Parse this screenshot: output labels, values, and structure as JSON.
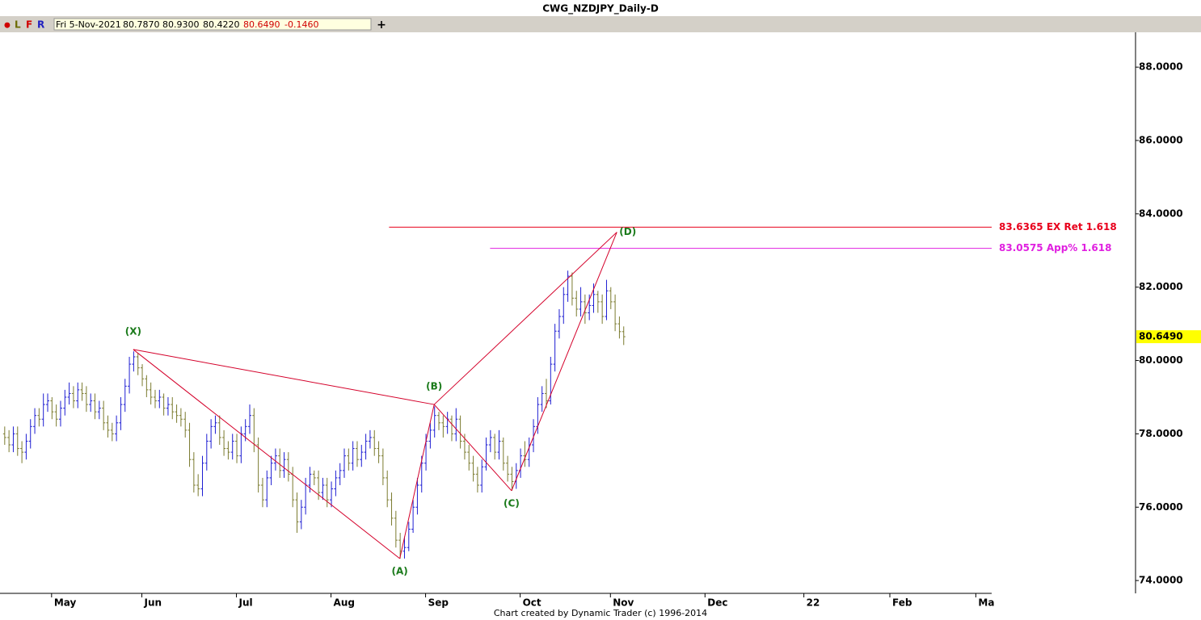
{
  "header": {
    "title": "CWG_NZDJPY_Daily-D",
    "toolbar": [
      "●",
      "L",
      "F",
      "R"
    ],
    "quote": [
      "Fri 5-Nov-2021",
      "80.7870",
      "80.9300",
      "80.4220",
      "80.6490",
      "-0.1460"
    ],
    "add_button": "+"
  },
  "chart_data": {
    "type": "ohlc",
    "up_color": "#1e1ed2",
    "down_color": "#7b7b2f",
    "xlim": [
      -1,
      229.5
    ],
    "ylim": [
      73.65,
      88.95
    ],
    "xticks": [
      {
        "value": 11,
        "label": "May"
      },
      {
        "value": 32,
        "label": "Jun"
      },
      {
        "value": 54,
        "label": "Jul"
      },
      {
        "value": 76,
        "label": "Aug"
      },
      {
        "value": 98,
        "label": "Sep"
      },
      {
        "value": 120,
        "label": "Oct"
      },
      {
        "value": 141,
        "label": "Nov"
      },
      {
        "value": 163,
        "label": "Dec"
      },
      {
        "value": 186,
        "label": "22"
      },
      {
        "value": 206,
        "label": "Feb"
      },
      {
        "value": 226,
        "label": "Ma"
      }
    ],
    "yticks": [
      {
        "value": 74,
        "label": "74.0000"
      },
      {
        "value": 76,
        "label": "76.0000"
      },
      {
        "value": 78,
        "label": "78.0000"
      },
      {
        "value": 80,
        "label": "80.0000"
      },
      {
        "value": 82,
        "label": "82.0000"
      },
      {
        "value": 84,
        "label": "84.0000"
      },
      {
        "value": 86,
        "label": "86.0000"
      },
      {
        "value": 88,
        "label": "88.0000"
      }
    ],
    "last_price": {
      "value": 80.649,
      "label": "80.6490"
    },
    "bars": [
      [
        78.0,
        78.2,
        77.7,
        77.9
      ],
      [
        77.9,
        78.1,
        77.5,
        77.7
      ],
      [
        77.7,
        78.2,
        77.5,
        78.0
      ],
      [
        78.0,
        78.2,
        77.4,
        77.6
      ],
      [
        77.6,
        77.8,
        77.2,
        77.5
      ],
      [
        77.5,
        78.0,
        77.3,
        77.8
      ],
      [
        77.8,
        78.4,
        77.6,
        78.2
      ],
      [
        78.2,
        78.7,
        78.0,
        78.5
      ],
      [
        78.5,
        78.7,
        78.2,
        78.4
      ],
      [
        78.4,
        79.1,
        78.2,
        78.8
      ],
      [
        78.8,
        79.1,
        78.6,
        78.9
      ],
      [
        78.9,
        79.0,
        78.4,
        78.6
      ],
      [
        78.6,
        78.8,
        78.2,
        78.4
      ],
      [
        78.4,
        78.9,
        78.2,
        78.7
      ],
      [
        78.7,
        79.2,
        78.5,
        79.0
      ],
      [
        79.0,
        79.4,
        78.8,
        79.1
      ],
      [
        79.1,
        79.3,
        78.7,
        78.9
      ],
      [
        78.9,
        79.4,
        78.7,
        79.2
      ],
      [
        79.2,
        79.4,
        78.9,
        79.1
      ],
      [
        79.1,
        79.3,
        78.6,
        78.8
      ],
      [
        78.8,
        79.1,
        78.6,
        78.9
      ],
      [
        78.9,
        79.1,
        78.4,
        78.6
      ],
      [
        78.6,
        78.9,
        78.4,
        78.7
      ],
      [
        78.7,
        78.9,
        78.1,
        78.3
      ],
      [
        78.3,
        78.5,
        77.9,
        78.1
      ],
      [
        78.1,
        78.3,
        77.8,
        78.0
      ],
      [
        78.0,
        78.5,
        77.8,
        78.3
      ],
      [
        78.3,
        79.0,
        78.1,
        78.8
      ],
      [
        78.8,
        79.5,
        78.6,
        79.3
      ],
      [
        79.3,
        80.1,
        79.1,
        79.9
      ],
      [
        79.9,
        80.25,
        79.7,
        80.1
      ],
      [
        80.1,
        80.2,
        79.6,
        79.8
      ],
      [
        79.8,
        79.9,
        79.3,
        79.5
      ],
      [
        79.5,
        79.6,
        79.0,
        79.2
      ],
      [
        79.2,
        79.4,
        78.8,
        79.0
      ],
      [
        79.0,
        79.2,
        78.7,
        78.9
      ],
      [
        78.9,
        79.2,
        78.7,
        79.0
      ],
      [
        79.0,
        79.1,
        78.5,
        78.7
      ],
      [
        78.7,
        79.0,
        78.5,
        78.8
      ],
      [
        78.8,
        79.0,
        78.4,
        78.6
      ],
      [
        78.6,
        78.8,
        78.3,
        78.5
      ],
      [
        78.5,
        78.7,
        78.2,
        78.4
      ],
      [
        78.4,
        78.6,
        77.9,
        78.1
      ],
      [
        78.1,
        78.3,
        77.1,
        77.3
      ],
      [
        77.3,
        77.5,
        76.4,
        76.6
      ],
      [
        76.6,
        76.9,
        76.3,
        76.5
      ],
      [
        76.5,
        77.4,
        76.3,
        77.2
      ],
      [
        77.2,
        78.0,
        77.0,
        77.8
      ],
      [
        77.8,
        78.4,
        77.6,
        78.2
      ],
      [
        78.2,
        78.5,
        78.0,
        78.3
      ],
      [
        78.3,
        78.5,
        77.7,
        77.9
      ],
      [
        77.9,
        78.1,
        77.4,
        77.6
      ],
      [
        77.6,
        77.8,
        77.3,
        77.5
      ],
      [
        77.5,
        78.0,
        77.3,
        77.8
      ],
      [
        77.8,
        78.0,
        77.2,
        77.4
      ],
      [
        77.4,
        78.2,
        77.2,
        78.0
      ],
      [
        78.0,
        78.4,
        77.8,
        78.2
      ],
      [
        78.2,
        78.8,
        78.0,
        78.5
      ],
      [
        78.5,
        78.7,
        77.5,
        77.7
      ],
      [
        77.7,
        77.9,
        76.4,
        76.6
      ],
      [
        76.6,
        76.8,
        76.0,
        76.2
      ],
      [
        76.2,
        77.0,
        76.0,
        76.8
      ],
      [
        76.8,
        77.4,
        76.6,
        77.2
      ],
      [
        77.2,
        77.6,
        77.0,
        77.4
      ],
      [
        77.4,
        77.6,
        76.8,
        77.0
      ],
      [
        77.0,
        77.5,
        76.8,
        77.3
      ],
      [
        77.3,
        77.5,
        76.7,
        76.9
      ],
      [
        76.9,
        77.1,
        76.0,
        76.2
      ],
      [
        76.2,
        76.4,
        75.3,
        75.6
      ],
      [
        75.6,
        76.2,
        75.4,
        76.0
      ],
      [
        76.0,
        76.8,
        75.8,
        76.6
      ],
      [
        76.6,
        77.1,
        76.4,
        76.9
      ],
      [
        76.9,
        77.0,
        76.6,
        76.8
      ],
      [
        76.8,
        77.0,
        76.2,
        76.4
      ],
      [
        76.4,
        76.8,
        76.2,
        76.6
      ],
      [
        76.6,
        76.8,
        76.0,
        76.2
      ],
      [
        76.2,
        76.7,
        76.0,
        76.5
      ],
      [
        76.5,
        77.0,
        76.3,
        76.8
      ],
      [
        76.8,
        77.2,
        76.6,
        77.0
      ],
      [
        77.0,
        77.6,
        76.8,
        77.4
      ],
      [
        77.4,
        77.6,
        77.0,
        77.2
      ],
      [
        77.2,
        77.8,
        77.0,
        77.6
      ],
      [
        77.6,
        77.8,
        77.1,
        77.3
      ],
      [
        77.3,
        77.7,
        77.1,
        77.5
      ],
      [
        77.5,
        78.0,
        77.3,
        77.8
      ],
      [
        77.8,
        78.1,
        77.6,
        77.9
      ],
      [
        77.9,
        78.1,
        77.4,
        77.6
      ],
      [
        77.6,
        77.8,
        77.2,
        77.4
      ],
      [
        77.4,
        77.6,
        76.6,
        76.8
      ],
      [
        76.8,
        77.0,
        76.0,
        76.2
      ],
      [
        76.2,
        76.4,
        75.5,
        75.7
      ],
      [
        75.7,
        75.9,
        74.9,
        75.1
      ],
      [
        75.1,
        75.3,
        74.6,
        74.8
      ],
      [
        74.8,
        75.2,
        74.6,
        74.9
      ],
      [
        74.9,
        75.6,
        74.8,
        75.4
      ],
      [
        75.4,
        76.2,
        75.3,
        76.0
      ],
      [
        76.0,
        76.8,
        75.8,
        76.6
      ],
      [
        76.6,
        77.4,
        76.4,
        77.2
      ],
      [
        77.2,
        78.0,
        77.0,
        77.8
      ],
      [
        77.8,
        78.3,
        77.6,
        78.1
      ],
      [
        78.1,
        78.75,
        77.9,
        78.5
      ],
      [
        78.5,
        78.6,
        78.1,
        78.3
      ],
      [
        78.3,
        78.5,
        77.9,
        78.2
      ],
      [
        78.2,
        78.6,
        78.0,
        78.4
      ],
      [
        78.4,
        78.5,
        77.8,
        78.0
      ],
      [
        78.0,
        78.7,
        77.8,
        78.4
      ],
      [
        78.4,
        78.5,
        77.6,
        77.8
      ],
      [
        77.8,
        78.0,
        77.3,
        77.5
      ],
      [
        77.5,
        77.7,
        77.0,
        77.2
      ],
      [
        77.2,
        77.4,
        76.7,
        76.9
      ],
      [
        76.9,
        77.1,
        76.4,
        76.6
      ],
      [
        76.6,
        77.3,
        76.4,
        77.1
      ],
      [
        77.1,
        77.9,
        77.0,
        77.7
      ],
      [
        77.7,
        78.1,
        77.5,
        77.9
      ],
      [
        77.9,
        78.0,
        77.3,
        77.5
      ],
      [
        77.5,
        78.1,
        77.3,
        77.8
      ],
      [
        77.8,
        77.9,
        77.0,
        77.2
      ],
      [
        77.2,
        77.4,
        76.7,
        76.9
      ],
      [
        76.9,
        77.1,
        76.45,
        76.7
      ],
      [
        76.7,
        77.2,
        76.5,
        77.0
      ],
      [
        77.0,
        77.6,
        76.8,
        77.4
      ],
      [
        77.4,
        77.8,
        77.1,
        77.3
      ],
      [
        77.3,
        77.9,
        77.1,
        77.7
      ],
      [
        77.7,
        78.4,
        77.5,
        78.2
      ],
      [
        78.2,
        79.0,
        78.0,
        78.8
      ],
      [
        78.8,
        79.3,
        78.6,
        79.1
      ],
      [
        79.1,
        79.5,
        78.7,
        78.9
      ],
      [
        78.9,
        80.1,
        78.8,
        79.9
      ],
      [
        79.9,
        81.0,
        79.7,
        80.8
      ],
      [
        80.8,
        81.4,
        80.6,
        81.2
      ],
      [
        81.2,
        82.0,
        81.0,
        81.8
      ],
      [
        81.8,
        82.45,
        81.6,
        82.3
      ],
      [
        82.3,
        82.4,
        81.5,
        81.7
      ],
      [
        81.7,
        81.9,
        81.2,
        81.4
      ],
      [
        81.4,
        82.0,
        81.2,
        81.6
      ],
      [
        81.6,
        81.8,
        81.0,
        81.3
      ],
      [
        81.3,
        81.8,
        81.1,
        81.5
      ],
      [
        81.5,
        82.1,
        81.3,
        81.8
      ],
      [
        81.8,
        81.9,
        81.3,
        81.6
      ],
      [
        81.6,
        81.8,
        81.0,
        81.2
      ],
      [
        81.2,
        82.2,
        81.1,
        81.9
      ],
      [
        81.9,
        82.0,
        81.4,
        81.6
      ],
      [
        81.6,
        81.8,
        80.8,
        81.0
      ],
      [
        81.0,
        81.2,
        80.6,
        80.787
      ],
      [
        80.787,
        80.93,
        80.422,
        80.649
      ]
    ],
    "pattern": [
      {
        "label": "(X)",
        "x": 30,
        "y": 80.3
      },
      {
        "label": "(A)",
        "x": 92,
        "y": 74.6
      },
      {
        "label": "(B)",
        "x": 100,
        "y": 78.8
      },
      {
        "label": "(C)",
        "x": 118,
        "y": 76.45
      },
      {
        "label": "(D)",
        "x": 142.5,
        "y": 83.5
      }
    ],
    "levels": [
      {
        "value": 83.6365,
        "label": "83.6365 EX Ret 1.618",
        "color": "#e8001c",
        "x_start": 89.5
      },
      {
        "value": 83.0575,
        "label": "83.0575 App% 1.618",
        "color": "#e020e0",
        "x_start": 113
      }
    ]
  },
  "footer": "Chart created by Dynamic Trader  (c) 1996-2014"
}
